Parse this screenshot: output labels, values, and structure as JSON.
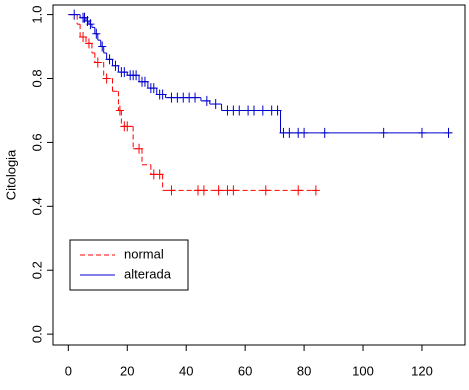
{
  "chart_data": {
    "type": "survival",
    "y_label": "Citologia",
    "xlim": [
      -5.2,
      134.6
    ],
    "ylim": [
      -0.034,
      1.03
    ],
    "xticks": [
      0,
      20,
      40,
      60,
      80,
      100,
      120
    ],
    "yticks": [
      {
        "value": 0,
        "label": "0.0"
      },
      0.2,
      0.4,
      0.6,
      0.8,
      {
        "value": 1,
        "label": "1.0"
      }
    ],
    "legend": "bottom-left",
    "series": [
      {
        "name": "normal",
        "color": "#ff0000",
        "line_style": "dashed",
        "x": [
          0,
          3,
          4,
          6,
          8,
          9,
          12,
          15,
          17,
          18,
          22,
          25,
          28,
          32,
          84
        ],
        "values": [
          1.0,
          0.97,
          0.93,
          0.91,
          0.88,
          0.85,
          0.8,
          0.76,
          0.7,
          0.65,
          0.58,
          0.53,
          0.5,
          0.45,
          0.45
        ],
        "censor_x": [
          5,
          7,
          10,
          13,
          17.5,
          19,
          20,
          24,
          29,
          31,
          35,
          44,
          46,
          51,
          54,
          56,
          67,
          78,
          84
        ],
        "censor_values": [
          0.93,
          0.91,
          0.85,
          0.8,
          0.7,
          0.65,
          0.65,
          0.58,
          0.5,
          0.5,
          0.45,
          0.45,
          0.45,
          0.45,
          0.45,
          0.45,
          0.45,
          0.45,
          0.45
        ]
      },
      {
        "name": "alterada",
        "color": "#0000cc",
        "line_style": "solid",
        "x": [
          0,
          4,
          6,
          7,
          8,
          9,
          10,
          11,
          12,
          13,
          15,
          17,
          20,
          24,
          27,
          30,
          33,
          45,
          48,
          52,
          72,
          130
        ],
        "values": [
          1.0,
          0.99,
          0.98,
          0.97,
          0.96,
          0.94,
          0.92,
          0.9,
          0.88,
          0.86,
          0.84,
          0.82,
          0.81,
          0.79,
          0.77,
          0.75,
          0.74,
          0.73,
          0.72,
          0.7,
          0.63,
          0.63
        ],
        "censor_x": [
          2,
          5,
          5.5,
          6.5,
          7.5,
          9.5,
          11.5,
          14,
          16,
          18,
          19,
          21,
          22,
          23,
          25,
          26,
          28,
          29,
          31,
          32,
          35,
          37,
          39,
          41,
          43,
          47,
          50,
          54,
          56,
          58,
          61,
          63,
          66,
          69,
          71,
          73,
          75,
          78,
          80,
          87,
          107,
          120,
          129
        ],
        "censor_values": [
          1.0,
          0.99,
          0.99,
          0.98,
          0.97,
          0.94,
          0.9,
          0.86,
          0.84,
          0.82,
          0.82,
          0.81,
          0.81,
          0.81,
          0.79,
          0.79,
          0.77,
          0.77,
          0.75,
          0.75,
          0.74,
          0.74,
          0.74,
          0.74,
          0.74,
          0.73,
          0.72,
          0.7,
          0.7,
          0.7,
          0.7,
          0.7,
          0.7,
          0.7,
          0.7,
          0.63,
          0.63,
          0.63,
          0.63,
          0.63,
          0.63,
          0.63,
          0.63
        ]
      }
    ]
  }
}
